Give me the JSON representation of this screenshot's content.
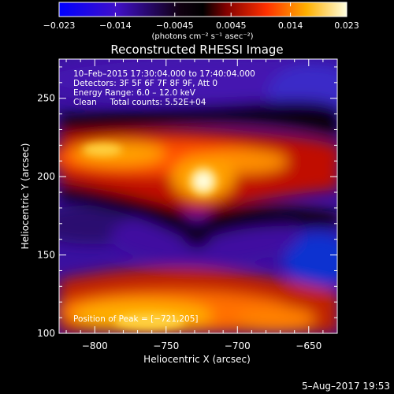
{
  "chart_data": {
    "type": "heatmap",
    "title": "Reconstructed RHESSI Image",
    "xlabel": "Heliocentric X (arcsec)",
    "ylabel": "Heliocentric Y (arcsec)",
    "xlim": [
      -825,
      -630
    ],
    "ylim": [
      100,
      275
    ],
    "x_ticks": [
      -800,
      -750,
      -700,
      -650
    ],
    "y_ticks": [
      100,
      150,
      200,
      250
    ],
    "x_tick_labels": [
      "−800",
      "−750",
      "−700",
      "−650"
    ],
    "y_tick_labels": [
      "100",
      "150",
      "200",
      "250"
    ],
    "colorbar": {
      "range": [
        -0.023,
        0.023
      ],
      "ticks": [
        -0.023,
        -0.014,
        -0.0045,
        0.0045,
        0.014,
        0.023
      ],
      "tick_labels": [
        "−0.023",
        "−0.014",
        "−0.0045",
        "0.0045",
        "0.014",
        "0.023"
      ],
      "unit_label": "(photons cm⁻² s⁻¹ asec⁻²)"
    },
    "annotations": [
      "10–Feb–2015 17:30:04.000 to 17:40:04.000",
      "Detectors: 3F 5F 6F 7F 8F 9F, Att 0",
      "Energy Range: 6.0 – 12.0 keV",
      "Clean     Total counts: 5.52E+04"
    ],
    "peak_label": "Position of Peak = [−721,205]",
    "peak": [
      -721,
      205
    ]
  },
  "footer": {
    "date": "5–Aug–2017 19:53"
  }
}
